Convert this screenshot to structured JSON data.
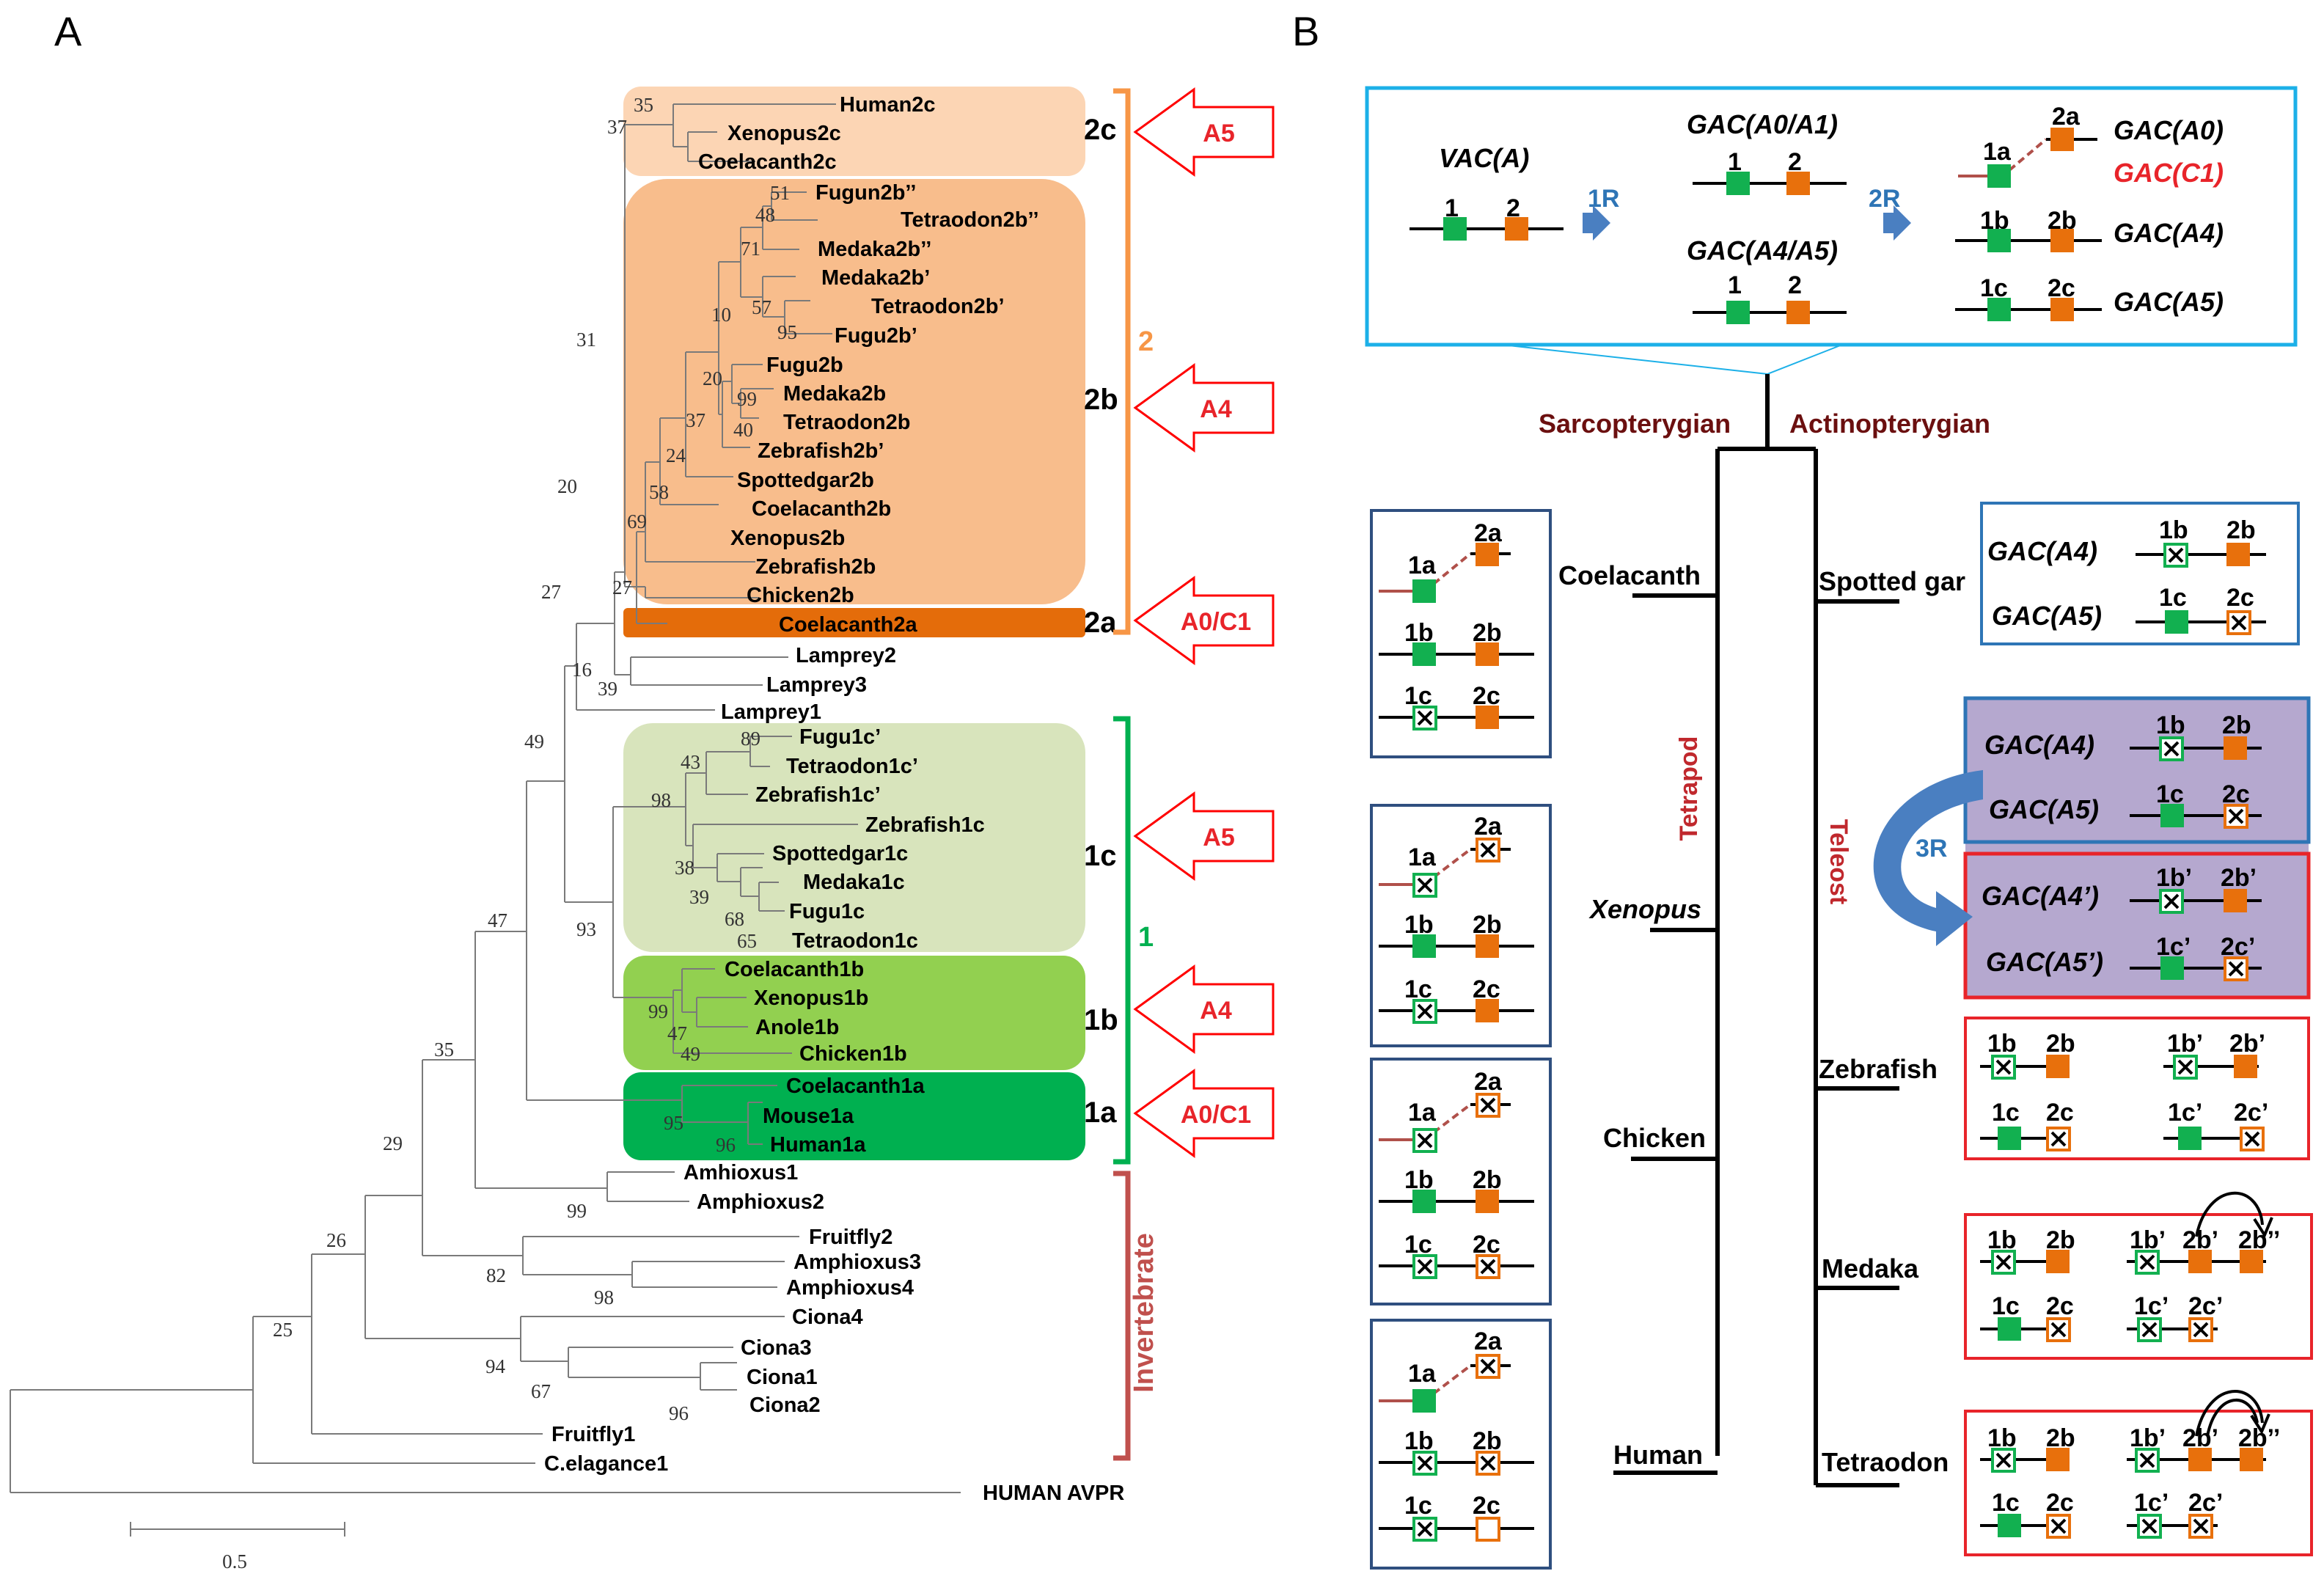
{
  "panelA": {
    "letter": "A",
    "leaves": {
      "human2c": "Human2c",
      "xenopus2c": "Xenopus2c",
      "coelacanth2c": "Coelacanth2c",
      "fugu2bpp": "Fugun2b’’",
      "tetraodon2bpp": "Tetraodon2b’’",
      "medaka2bpp": "Medaka2b’’",
      "medaka2bp": "Medaka2b’",
      "tetraodon2bp": "Tetraodon2b’",
      "fugu2bp": "Fugu2b’",
      "fugu2b": "Fugu2b",
      "medaka2b": "Medaka2b",
      "tetraodon2b": "Tetraodon2b",
      "zebrafish2bp": "Zebrafish2b’",
      "spottedgar2b": "Spottedgar2b",
      "coelacanth2b": "Coelacanth2b",
      "xenopus2b": "Xenopus2b",
      "zebrafish2b": "Zebrafish2b",
      "chicken2b": "Chicken2b",
      "coelacanth2a": "Coelacanth2a",
      "lamprey2": "Lamprey2",
      "lamprey3": "Lamprey3",
      "lamprey1": "Lamprey1",
      "fugu1cp": "Fugu1c’",
      "tetraodon1cp": "Tetraodon1c’",
      "zebrafish1cp": "Zebrafish1c’",
      "zebrafish1c": "Zebrafish1c",
      "spottedgar1c": "Spottedgar1c",
      "medaka1c": "Medaka1c",
      "fugu1c": "Fugu1c",
      "tetraodon1c": "Tetraodon1c",
      "coelacanth1b": "Coelacanth1b",
      "xenopus1b": "Xenopus1b",
      "anole1b": "Anole1b",
      "chicken1b": "Chicken1b",
      "coelacanth1a": "Coelacanth1a",
      "mouse1a": "Mouse1a",
      "human1a": "Human1a",
      "amhioxus1": "Amhioxus1",
      "amphioxus2": "Amphioxus2",
      "fruitfly2": "Fruitfly2",
      "amphioxus3": "Amphioxus3",
      "amphioxus4": "Amphioxus4",
      "ciona4": "Ciona4",
      "ciona3": "Ciona3",
      "ciona1": "Ciona1",
      "ciona2": "Ciona2",
      "fruitfly1": "Fruitfly1",
      "celegans1": "C.elagance1",
      "avpr": "HUMAN AVPR"
    },
    "bootstrap": {
      "b35": "35",
      "b37": "37",
      "b51": "51",
      "b48": "48",
      "b71": "71",
      "b10": "10",
      "b57": "57",
      "b95a": "95",
      "b20a": "20",
      "b99a": "99",
      "b40": "40",
      "b37b": "37",
      "b24": "24",
      "b58": "58",
      "b69": "69",
      "b27a": "27",
      "b31": "31",
      "b20b": "20",
      "b27b": "27",
      "b16": "16",
      "b39a": "39",
      "b89": "89",
      "b43": "43",
      "b98a": "98",
      "b38": "38",
      "b39b": "39",
      "b68": "68",
      "b65": "65",
      "b93": "93",
      "b49a": "49",
      "b99b": "99",
      "b47a": "47",
      "b49b": "49",
      "b95b": "95",
      "b96a": "96",
      "b47b": "47",
      "b35b": "35",
      "b29": "29",
      "b99c": "99",
      "b82": "82",
      "b98b": "98",
      "b26": "26",
      "b94": "94",
      "b67": "67",
      "b96b": "96",
      "b25": "25"
    },
    "subgroups": {
      "s2c": "2c",
      "s2b": "2b",
      "s2a": "2a",
      "s1c": "1c",
      "s1b": "1b",
      "s1a": "1a"
    },
    "groups": {
      "g2": "2",
      "g1": "1",
      "inv": "Invertebrate"
    },
    "arrows": {
      "a5top": "A5",
      "a4top": "A4",
      "a0top": "A0/C1",
      "a5bot": "A5",
      "a4bot": "A4",
      "a0bot": "A0/C1"
    },
    "scale": {
      "label": "0.5",
      "value": 0.5
    },
    "colors": {
      "box2c": "#fcd5b4",
      "box2b": "#f8bd8c",
      "box2a": "#e46c0a",
      "box1c": "#d8e4bc",
      "box1b": "#92d050",
      "box1a": "#00b050",
      "bracket2": "#f79646",
      "bracket1": "#00b050",
      "bracketInv": "#c0504d",
      "arrow": "#ff0000"
    }
  },
  "panelB": {
    "letter": "B",
    "top": {
      "vac": "VAC(A)",
      "gac01": "GAC(A0/A1)",
      "gac45": "GAC(A4/A5)",
      "g1": "1",
      "g2": "2",
      "g1b": "1",
      "g2b": "2",
      "g1c": "1",
      "g2c": "2",
      "r1": "1R",
      "r2": "2R",
      "t2a": "2a",
      "t1a": "1a",
      "t1b": "1b",
      "t2b": "2b",
      "t1c": "1c",
      "t2c": "2c",
      "lblA0": "GAC(A0)",
      "lblC1": "GAC(C1)",
      "lblA4": "GAC(A4)",
      "lblA5": "GAC(A5)"
    },
    "clades": {
      "sarco": "Sarcopterygian",
      "actino": "Actinopterygian",
      "tetrapod": "Tetrapod",
      "teleost": "Teleost"
    },
    "species": {
      "coelacanth": "Coelacanth",
      "xenopus": "Xenopus",
      "chicken": "Chicken",
      "human": "Human",
      "gar": "Spotted gar",
      "zebrafish": "Zebrafish",
      "medaka": "Medaka",
      "tetraodon": "Tetraodon"
    },
    "garBox": {
      "l4": "GAC(A4)",
      "l5": "GAC(A5)",
      "g1b": "1b",
      "g2b": "2b",
      "g1c": "1c",
      "g2c": "2c"
    },
    "teleostBox": {
      "l4": "GAC(A4)",
      "l5": "GAC(A5)",
      "l4p": "GAC(A4’)",
      "l5p": "GAC(A5’)",
      "r3": "3R",
      "g1b": "1b",
      "g2b": "2b",
      "g1c": "1c",
      "g2c": "2c",
      "g1bp": "1b’",
      "g2bp": "2b’",
      "g1cp": "1c’",
      "g2cp": "2c’"
    },
    "leftBoxGenes": {
      "g2a": "2a",
      "g1a": "1a",
      "g1b": "1b",
      "g2b": "2b",
      "g1c": "1c",
      "g2c": "2c"
    },
    "fishGenes": {
      "g1b": "1b",
      "g2b": "2b",
      "g1bp": "1b’",
      "g2bp": "2b’",
      "g2bpp": "2b’’",
      "g1c": "1c",
      "g2c": "2c",
      "g1cp": "1c’",
      "g2cp": "2c’"
    },
    "colors": {
      "green": "#12b050",
      "orange": "#e8700c",
      "topBox": "#1cb0e8",
      "navyBox": "#2f4f7f",
      "redBox": "#e8242a",
      "blueBox": "#2e75b6",
      "purpleFill": "#b5a8cf",
      "linkBrown": "#b0504a"
    }
  }
}
